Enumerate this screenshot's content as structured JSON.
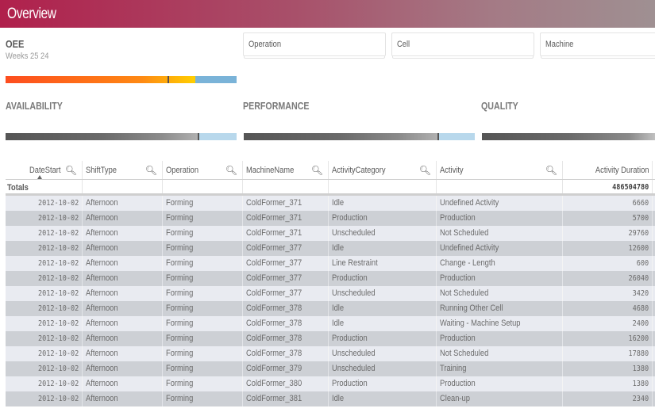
{
  "header": {
    "title": "Overview"
  },
  "oee": {
    "name": "OEE",
    "subtitle": "Weeks 25 24",
    "bar": {
      "fill_pct": 82,
      "marker_pct": 70,
      "colors": [
        "#fd4d1f",
        "#fe8a14",
        "#ffcf00"
      ],
      "rest_color": "#7ab3d8"
    }
  },
  "filters": [
    {
      "label": "Operation"
    },
    {
      "label": "Cell"
    },
    {
      "label": "Machine"
    }
  ],
  "sections": [
    {
      "title": "AVAILABILITY",
      "fill_pct": 82,
      "marker_pct": 83
    },
    {
      "title": "PERFORMANCE",
      "fill_pct": 82,
      "marker_pct": 83
    },
    {
      "title": "QUALITY",
      "fill_pct": 100,
      "marker_pct": null
    }
  ],
  "colors": {
    "kpi_dark": "#575757",
    "kpi_rest": "#b8d8ec"
  },
  "table": {
    "columns": [
      {
        "label": "DateStart",
        "searchable": true,
        "sorted": "asc"
      },
      {
        "label": "ShiftType",
        "searchable": true
      },
      {
        "label": "Operation",
        "searchable": true
      },
      {
        "label": "MachineName",
        "searchable": true
      },
      {
        "label": "ActivityCategory",
        "searchable": true
      },
      {
        "label": "Activity",
        "searchable": true
      },
      {
        "label": "Activity Duration",
        "searchable": false
      }
    ],
    "totals": {
      "label": "Totals",
      "activity_duration": "486504780"
    },
    "rows": [
      [
        "2012-10-02",
        "Afternoon",
        "Forming",
        "ColdFormer_371",
        "Idle",
        "Undefined Activity",
        "6660"
      ],
      [
        "2012-10-02",
        "Afternoon",
        "Forming",
        "ColdFormer_371",
        "Production",
        "Production",
        "5700"
      ],
      [
        "2012-10-02",
        "Afternoon",
        "Forming",
        "ColdFormer_371",
        "Unscheduled",
        "Not Scheduled",
        "29760"
      ],
      [
        "2012-10-02",
        "Afternoon",
        "Forming",
        "ColdFormer_377",
        "Idle",
        "Undefined Activity",
        "12600"
      ],
      [
        "2012-10-02",
        "Afternoon",
        "Forming",
        "ColdFormer_377",
        "Line Restraint",
        "Change - Length",
        "600"
      ],
      [
        "2012-10-02",
        "Afternoon",
        "Forming",
        "ColdFormer_377",
        "Production",
        "Production",
        "26040"
      ],
      [
        "2012-10-02",
        "Afternoon",
        "Forming",
        "ColdFormer_377",
        "Unscheduled",
        "Not Scheduled",
        "3420"
      ],
      [
        "2012-10-02",
        "Afternoon",
        "Forming",
        "ColdFormer_378",
        "Idle",
        "Running Other Cell",
        "4680"
      ],
      [
        "2012-10-02",
        "Afternoon",
        "Forming",
        "ColdFormer_378",
        "Idle",
        "Waiting - Machine Setup",
        "2400"
      ],
      [
        "2012-10-02",
        "Afternoon",
        "Forming",
        "ColdFormer_378",
        "Production",
        "Production",
        "16200"
      ],
      [
        "2012-10-02",
        "Afternoon",
        "Forming",
        "ColdFormer_378",
        "Unscheduled",
        "Not Scheduled",
        "17880"
      ],
      [
        "2012-10-02",
        "Afternoon",
        "Forming",
        "ColdFormer_379",
        "Unscheduled",
        "Training",
        "1380"
      ],
      [
        "2012-10-02",
        "Afternoon",
        "Forming",
        "ColdFormer_380",
        "Production",
        "Production",
        "1380"
      ],
      [
        "2012-10-02",
        "Afternoon",
        "Forming",
        "ColdFormer_381",
        "Idle",
        "Clean-up",
        "2340"
      ]
    ]
  }
}
